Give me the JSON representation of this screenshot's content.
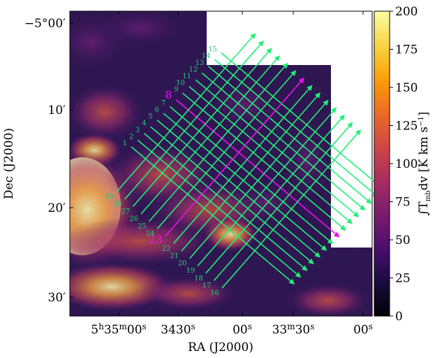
{
  "figure": {
    "xlabel": "RA (J2000)",
    "ylabel": "Dec (J2000)",
    "x_ticks": [
      {
        "h": "5",
        "m": "35",
        "s": "00"
      },
      {
        "h": "",
        "m": "34",
        "s": "30"
      },
      {
        "h": "",
        "m": "",
        "s": "00"
      },
      {
        "h": "",
        "m": "33",
        "s": "30"
      },
      {
        "h": "",
        "m": "",
        "s": "00"
      }
    ],
    "y_ticks": [
      {
        "label": "−5°00′"
      },
      {
        "label": "10′"
      },
      {
        "label": "20′"
      },
      {
        "label": "30′"
      }
    ],
    "colorbar": {
      "label": "∫T",
      "label_sub": "mb",
      "label_tail": "dv [K km s",
      "label_sup": "−1",
      "label_end": "]",
      "ticks": [
        "0",
        "25",
        "50",
        "75",
        "100",
        "125",
        "150",
        "175",
        "200"
      ],
      "range": [
        0,
        200
      ]
    },
    "colors": {
      "cuts": "#22ee77",
      "cut_labels": "#22cc77",
      "highlight": "#ee11ee",
      "cmap": [
        "#000004",
        "#1b0c41",
        "#4a0c6b",
        "#781c6d",
        "#a52c60",
        "#cf4446",
        "#ed6925",
        "#fb9b06",
        "#f7d13d",
        "#fcffa4"
      ]
    },
    "cut_labels_upper": [
      "1",
      "2",
      "3",
      "4",
      "5",
      "6",
      "7",
      "8",
      "9",
      "10",
      "11",
      "12",
      "13",
      "14",
      "15"
    ],
    "cut_labels_lower": [
      "16",
      "17",
      "18",
      "19",
      "20",
      "21",
      "22",
      "23",
      "24",
      "25",
      "26",
      "27",
      "28",
      "29"
    ],
    "highlight_labels": [
      "8",
      "23"
    ]
  }
}
